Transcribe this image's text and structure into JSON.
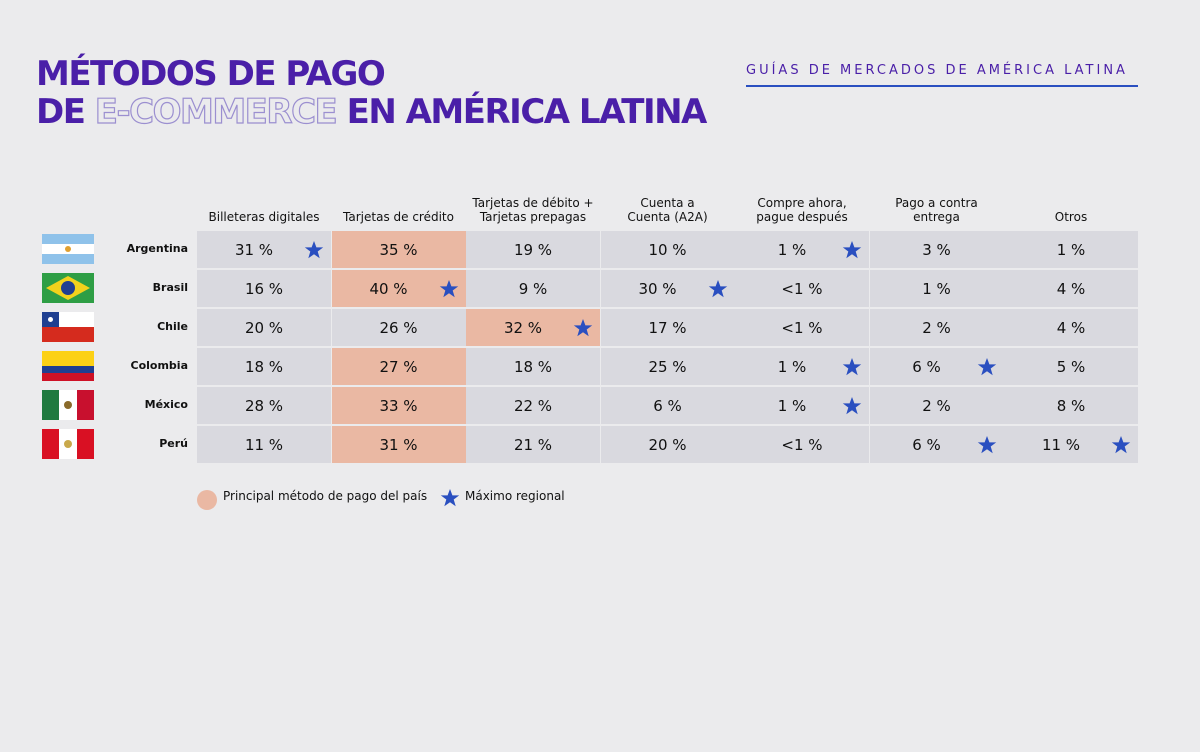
{
  "header": {
    "title_line1": "MÉTODOS DE PAGO",
    "title_line2_a": "DE",
    "title_line2_b": "E-COMMERCE",
    "title_line2_c": "EN AMÉRICA LATINA",
    "brand": "GUÍAS DE MERCADOS DE AMÉRICA LATINA"
  },
  "table": {
    "columns": [
      "Billeteras digitales",
      "Tarjetas de crédito",
      "Tarjetas de débito +\nTarjetas prepagas",
      "Cuenta a\nCuenta (A2A)",
      "Compre ahora,\npague después",
      "Pago a contra\nentrega",
      "Otros"
    ],
    "rows": [
      {
        "country": "Argentina",
        "principal": 1,
        "cells": [
          {
            "text": "31 %",
            "star": true
          },
          {
            "text": "35 %"
          },
          {
            "text": "19 %"
          },
          {
            "text": "10 %"
          },
          {
            "text": "1 %",
            "star": true
          },
          {
            "text": "3 %"
          },
          {
            "text": "1 %"
          }
        ]
      },
      {
        "country": "Brasil",
        "principal": 1,
        "cells": [
          {
            "text": "16 %"
          },
          {
            "text": "40 %",
            "star": true
          },
          {
            "text": "9 %"
          },
          {
            "text": "30 %",
            "star": true
          },
          {
            "text": "<1 %"
          },
          {
            "text": "1 %"
          },
          {
            "text": "4 %"
          }
        ]
      },
      {
        "country": "Chile",
        "principal": 2,
        "cells": [
          {
            "text": "20 %"
          },
          {
            "text": "26 %"
          },
          {
            "text": "32 %",
            "star": true
          },
          {
            "text": "17 %"
          },
          {
            "text": "<1 %"
          },
          {
            "text": "2 %"
          },
          {
            "text": "4 %"
          }
        ]
      },
      {
        "country": "Colombia",
        "principal": 1,
        "cells": [
          {
            "text": "18 %"
          },
          {
            "text": "27 %"
          },
          {
            "text": "18 %"
          },
          {
            "text": "25 %"
          },
          {
            "text": "1 %",
            "star": true
          },
          {
            "text": "6 %",
            "star": true
          },
          {
            "text": "5 %"
          }
        ]
      },
      {
        "country": "México",
        "principal": 1,
        "cells": [
          {
            "text": "28 %"
          },
          {
            "text": "33 %"
          },
          {
            "text": "22 %"
          },
          {
            "text": "6 %"
          },
          {
            "text": "1 %",
            "star": true
          },
          {
            "text": "2 %"
          },
          {
            "text": "8 %"
          }
        ]
      },
      {
        "country": "Perú",
        "principal": 1,
        "cells": [
          {
            "text": "11 %"
          },
          {
            "text": "31 %"
          },
          {
            "text": "21 %"
          },
          {
            "text": "20 %"
          },
          {
            "text": "<1 %"
          },
          {
            "text": "6 %",
            "star": true
          },
          {
            "text": "11 %",
            "star": true
          }
        ]
      }
    ]
  },
  "legend": {
    "principal": "Principal método de pago del país",
    "max": "Máximo regional"
  }
}
